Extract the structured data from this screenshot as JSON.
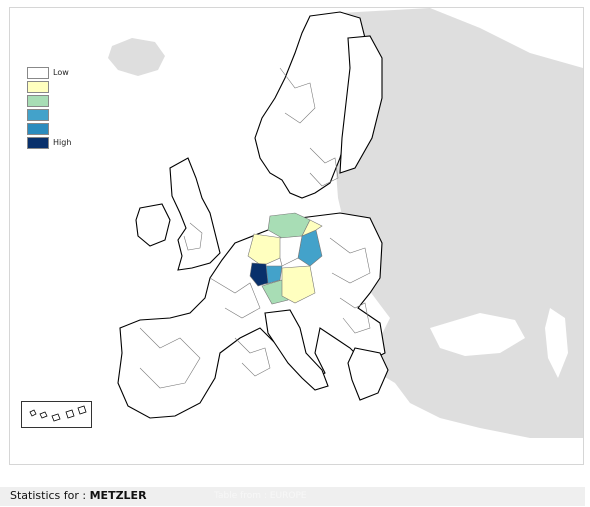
{
  "legend": {
    "items": [
      {
        "label": "Low",
        "color": "#ffffff"
      },
      {
        "label": "",
        "color": "#ffffbf"
      },
      {
        "label": "",
        "color": "#a8ddb5"
      },
      {
        "label": "",
        "color": "#43a2ca"
      },
      {
        "label": "",
        "color": "#2b8cbe"
      },
      {
        "label": "High",
        "color": "#08306b"
      }
    ]
  },
  "colors": {
    "land_background": "#dedede",
    "map_frame_border": "#d6d6d6",
    "region_outline": "#7a7a7a",
    "coast_outline": "#000000"
  },
  "footer": {
    "prefix": "Statistics for : ",
    "entity": "METZLER",
    "subtitle": "Table from : EUROPE"
  }
}
